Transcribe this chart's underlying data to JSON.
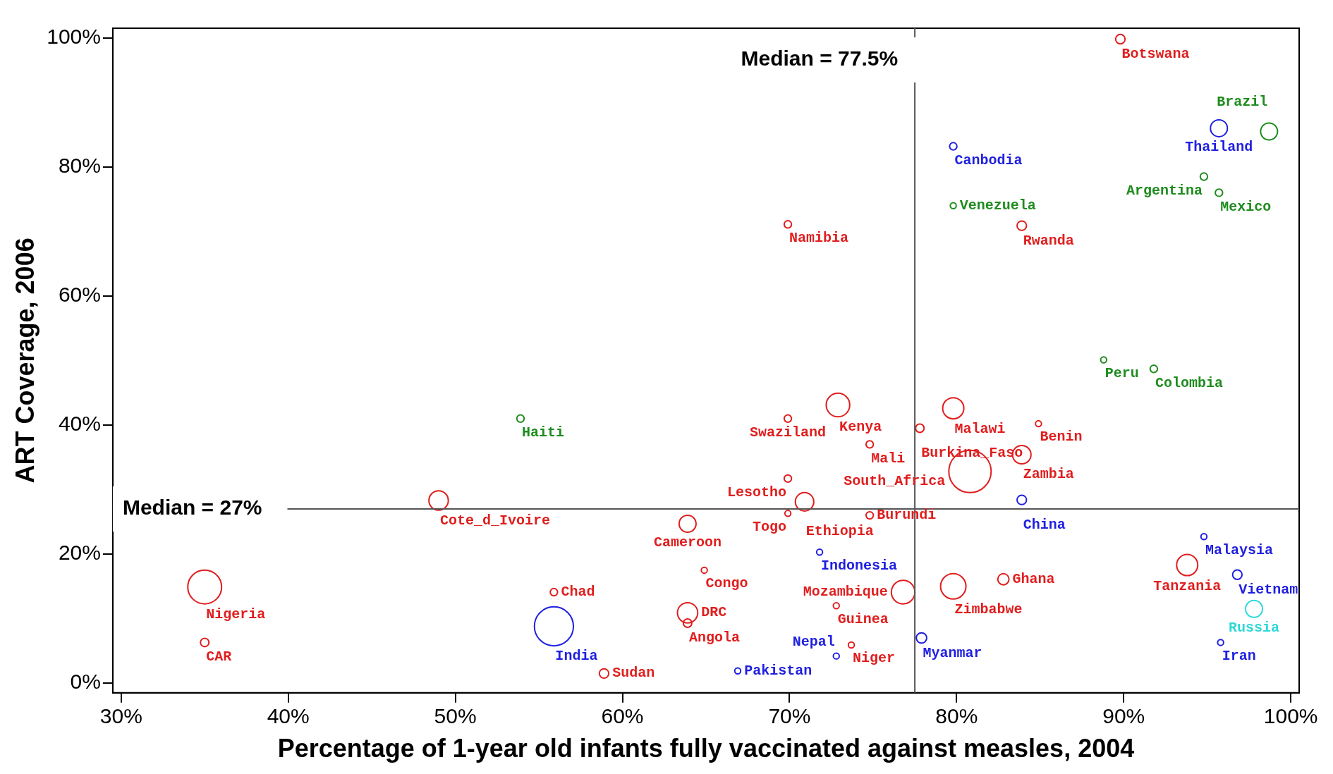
{
  "chart_data": {
    "type": "bubble",
    "xlabel": "Percentage of 1-year old infants fully vaccinated against measles, 2004",
    "ylabel": "ART Coverage, 2006",
    "xlim": [
      29.5,
      100.5
    ],
    "xticks": [
      {
        "value": 30,
        "label": "30%"
      },
      {
        "value": 40,
        "label": "40%"
      },
      {
        "value": 50,
        "label": "50%"
      },
      {
        "value": 60,
        "label": "60%"
      },
      {
        "value": 70,
        "label": "70%"
      },
      {
        "value": 80,
        "label": "80%"
      },
      {
        "value": 90,
        "label": "90%"
      },
      {
        "value": 100,
        "label": "100%"
      }
    ],
    "ylim": [
      -1.5,
      101.5
    ],
    "yticks": [
      {
        "value": 0,
        "label": "0%"
      },
      {
        "value": 20,
        "label": "20%"
      },
      {
        "value": 40,
        "label": "40%"
      },
      {
        "value": 60,
        "label": "60%"
      },
      {
        "value": 80,
        "label": "80%"
      },
      {
        "value": 100,
        "label": "100%"
      }
    ],
    "ref_lines": [
      {
        "axis": "x",
        "value": 77.5,
        "label": "Median = 77.5%"
      },
      {
        "axis": "y",
        "value": 27,
        "label": "Median = 27%"
      }
    ],
    "series": [
      {
        "color": "#e01e1e",
        "x": [
          89.8,
          69.9,
          83.9,
          72.9,
          69.9,
          79.8,
          77.8,
          84.9,
          74.8,
          83.9,
          80.8,
          69.9,
          70.9,
          69.9,
          74.8,
          49.0,
          63.9,
          64.9,
          55.9,
          63.9,
          63.9,
          58.9,
          72.8,
          73.7,
          76.8,
          79.8,
          82.8,
          35.0,
          35.0,
          93.8
        ],
        "values": [
          99.8,
          71.1,
          70.9,
          43.1,
          41.0,
          42.6,
          39.5,
          40.2,
          37.0,
          35.4,
          32.8,
          31.7,
          28.1,
          26.3,
          26.0,
          28.3,
          24.7,
          17.5,
          14.1,
          10.9,
          9.3,
          1.5,
          12.0,
          5.9,
          14.1,
          15.0,
          16.1,
          14.9,
          6.3,
          18.3
        ],
        "sizes": [
          0.05,
          0.03,
          0.05,
          0.31,
          0.03,
          0.25,
          0.04,
          0.02,
          0.03,
          0.19,
          1,
          0.03,
          0.19,
          0.02,
          0.03,
          0.21,
          0.16,
          0.02,
          0.03,
          0.23,
          0.04,
          0.05,
          0.02,
          0.02,
          0.31,
          0.36,
          0.07,
          0.64,
          0.04,
          0.25
        ],
        "value_labels": [
          "Botswana",
          "Namibia",
          "Rwanda",
          "Kenya",
          "Swaziland",
          "Malawi",
          "Burkina_Faso",
          "Benin",
          "Mali",
          "Zambia",
          "South_Africa",
          "Lesotho",
          "Ethiopia",
          "Togo",
          "Burundi",
          "Cote_d_Ivoire",
          "Cameroon",
          "Congo",
          "Chad",
          "DRC",
          "Angola",
          "Sudan",
          "Guinea",
          "Niger",
          "Mozambique",
          "Zimbabwe",
          "Ghana",
          "Nigeria",
          "CAR",
          "Tanzania"
        ]
      },
      {
        "color": "#2020e0",
        "x": [
          79.8,
          95.7,
          83.9,
          71.8,
          55.9,
          66.9,
          72.8,
          77.9,
          94.8,
          96.8,
          95.8
        ],
        "values": [
          83.2,
          86.0,
          28.4,
          20.3,
          8.8,
          1.9,
          4.2,
          7.0,
          22.7,
          16.8,
          6.3
        ],
        "sizes": [
          0.03,
          0.16,
          0.05,
          0.02,
          0.85,
          0.02,
          0.02,
          0.06,
          0.02,
          0.05,
          0.02
        ],
        "value_labels": [
          "Canbodia",
          "Thailand",
          "China",
          "Indonesia",
          "India",
          "Pakistan",
          "Nepal",
          "Myanmar",
          "Malaysia",
          "Vietnam",
          "Iran"
        ]
      },
      {
        "color": "#1e8c1e",
        "x": [
          79.8,
          98.7,
          94.8,
          95.7,
          88.8,
          91.8,
          53.9
        ],
        "values": [
          74.0,
          85.5,
          78.5,
          76.0,
          50.1,
          48.7,
          41.0
        ],
        "sizes": [
          0.02,
          0.16,
          0.03,
          0.03,
          0.02,
          0.03,
          0.03
        ],
        "value_labels": [
          "Venezuela",
          "Brazil",
          "Argentina",
          "Mexico",
          "Peru",
          "Colombia",
          "Haiti"
        ]
      },
      {
        "color": "#30d8d8",
        "x": [
          97.8
        ],
        "values": [
          11.5
        ],
        "sizes": [
          0.16
        ],
        "value_labels": [
          "Russia"
        ]
      }
    ]
  }
}
